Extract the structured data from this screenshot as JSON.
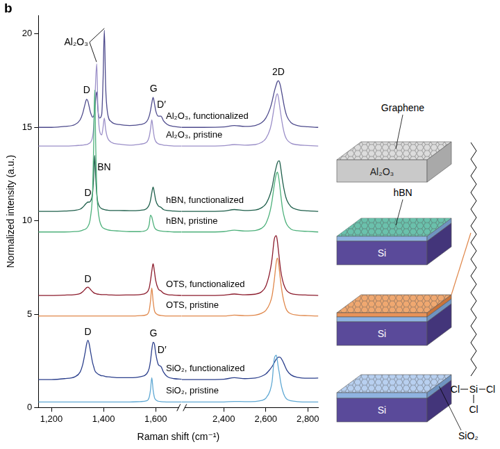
{
  "panel_letter": "b",
  "chart_data": {
    "type": "line",
    "x_label": "Raman shift (cm⁻¹)",
    "y_label": "Normalized intensity (a.u.)",
    "grid": false,
    "ylim": [
      0,
      21
    ],
    "yticks": [
      0,
      5,
      10,
      15,
      20
    ],
    "segments": [
      {
        "x": [
          1150,
          1200,
          1250,
          1290,
          1310,
          1320,
          1330,
          1335,
          1340,
          1345,
          1350,
          1358,
          1362,
          1366,
          1370,
          1374,
          1378,
          1385,
          1393,
          1398,
          1403,
          1408,
          1415,
          1430,
          1460,
          1500,
          1540,
          1565,
          1575,
          1580,
          1585,
          1590,
          1595,
          1600,
          1610,
          1620,
          1630,
          1645,
          1670,
          1700
        ],
        "xlim": [
          1150,
          1700
        ],
        "xticks": [
          {
            "value": 1200,
            "label": "1,200"
          },
          {
            "value": 1400,
            "label": "1,400"
          },
          {
            "value": 1600,
            "label": "1,600"
          }
        ]
      },
      {
        "x": [
          2200,
          2300,
          2400,
          2450,
          2500,
          2550,
          2580,
          2600,
          2620,
          2630,
          2640,
          2650,
          2655,
          2660,
          2665,
          2670,
          2680,
          2690,
          2700,
          2720,
          2750,
          2800,
          2850
        ],
        "xlim": [
          2200,
          2850
        ],
        "xticks": [
          {
            "value": 2400,
            "label": "2,400"
          },
          {
            "value": 2600,
            "label": "2,600"
          },
          {
            "value": 2800,
            "label": "2,800"
          }
        ]
      }
    ],
    "series": [
      {
        "name": "SiO₂, pristine",
        "color": "#5fa8d3",
        "values": [
          [
            0.3,
            0.3,
            0.3,
            0.3,
            0.3,
            0.3,
            0.3,
            0.3,
            0.3,
            0.3,
            0.3,
            0.3,
            0.3,
            0.3,
            0.3,
            0.3,
            0.3,
            0.3,
            0.3,
            0.3,
            0.3,
            0.3,
            0.3,
            0.3,
            0.3,
            0.3,
            0.32,
            0.36,
            0.55,
            0.95,
            1.6,
            0.95,
            0.55,
            0.42,
            0.34,
            0.32,
            0.31,
            0.3,
            0.3,
            0.3
          ],
          [
            0.3,
            0.3,
            0.3,
            0.33,
            0.32,
            0.33,
            0.38,
            0.5,
            0.9,
            1.4,
            2.6,
            2.8,
            2.5,
            2.1,
            1.8,
            1.4,
            0.9,
            0.6,
            0.45,
            0.36,
            0.32,
            0.3,
            0.3
          ]
        ]
      },
      {
        "name": "SiO₂, functionalized",
        "color": "#2b3f8c",
        "values": [
          [
            1.5,
            1.5,
            1.55,
            1.65,
            1.9,
            2.3,
            3.0,
            3.4,
            3.6,
            3.4,
            3.0,
            2.4,
            2.2,
            2.0,
            1.9,
            1.85,
            1.8,
            1.75,
            1.7,
            1.7,
            1.68,
            1.66,
            1.65,
            1.63,
            1.6,
            1.6,
            1.65,
            1.8,
            2.1,
            2.5,
            3.1,
            3.5,
            3.4,
            2.9,
            2.3,
            2.2,
            1.9,
            1.65,
            1.55,
            1.52
          ],
          [
            1.5,
            1.5,
            1.52,
            1.6,
            1.55,
            1.58,
            1.68,
            1.8,
            2.05,
            2.2,
            2.4,
            2.6,
            2.65,
            2.7,
            2.7,
            2.68,
            2.5,
            2.25,
            2.0,
            1.75,
            1.62,
            1.57,
            1.58
          ]
        ]
      },
      {
        "name": "OTS, pristine",
        "color": "#e0874a",
        "values": [
          [
            4.9,
            4.9,
            4.9,
            4.9,
            4.9,
            4.9,
            4.9,
            4.9,
            4.9,
            4.9,
            4.9,
            4.9,
            4.9,
            4.9,
            4.9,
            4.9,
            4.9,
            4.9,
            4.9,
            4.9,
            4.9,
            4.9,
            4.9,
            4.9,
            4.9,
            4.9,
            4.92,
            4.97,
            5.2,
            5.7,
            6.4,
            5.7,
            5.2,
            5.05,
            4.96,
            4.93,
            4.91,
            4.9,
            4.9,
            4.9
          ],
          [
            4.9,
            4.9,
            4.9,
            4.95,
            4.92,
            4.95,
            5.05,
            5.2,
            5.6,
            6.0,
            6.8,
            7.8,
            8.0,
            7.8,
            7.3,
            6.8,
            6.0,
            5.5,
            5.2,
            5.02,
            4.95,
            4.92,
            4.9
          ]
        ]
      },
      {
        "name": "OTS, functionalized",
        "color": "#8b1a2b",
        "values": [
          [
            6.0,
            6.0,
            6.02,
            6.05,
            6.1,
            6.2,
            6.35,
            6.42,
            6.45,
            6.4,
            6.32,
            6.2,
            6.15,
            6.12,
            6.1,
            6.08,
            6.07,
            6.06,
            6.05,
            6.05,
            6.05,
            6.05,
            6.04,
            6.03,
            6.02,
            6.03,
            6.05,
            6.15,
            6.4,
            6.8,
            7.3,
            7.7,
            7.3,
            6.8,
            6.35,
            6.25,
            6.12,
            6.05,
            6.02,
            6.0
          ],
          [
            6.0,
            6.0,
            6.02,
            6.08,
            6.04,
            6.07,
            6.2,
            6.5,
            7.3,
            8.0,
            9.0,
            9.2,
            8.9,
            8.4,
            7.9,
            7.4,
            6.8,
            6.45,
            6.25,
            6.1,
            6.05,
            6.02,
            6.0
          ]
        ]
      },
      {
        "name": "hBN, pristine",
        "color": "#4cb07a",
        "values": [
          [
            9.4,
            9.4,
            9.4,
            9.42,
            9.45,
            9.5,
            9.55,
            9.6,
            9.7,
            9.85,
            10.2,
            11.6,
            14.0,
            17.0,
            14.0,
            11.6,
            10.7,
            10.0,
            9.7,
            9.62,
            9.58,
            9.55,
            9.52,
            9.48,
            9.45,
            9.42,
            9.42,
            9.5,
            9.8,
            10.3,
            10.2,
            9.9,
            9.65,
            9.55,
            9.48,
            9.45,
            9.43,
            9.42,
            9.4,
            9.4
          ],
          [
            9.4,
            9.4,
            9.42,
            9.5,
            9.45,
            9.48,
            9.6,
            9.85,
            10.5,
            11.1,
            11.9,
            12.5,
            12.6,
            12.4,
            12.0,
            11.5,
            10.6,
            10.1,
            9.8,
            9.55,
            9.47,
            9.43,
            9.4
          ]
        ]
      },
      {
        "name": "hBN, functionalized",
        "color": "#1d5e4a",
        "values": [
          [
            10.5,
            10.5,
            10.52,
            10.56,
            10.62,
            10.72,
            10.88,
            10.95,
            11.0,
            11.0,
            11.05,
            11.5,
            12.3,
            13.5,
            12.3,
            11.4,
            11.0,
            10.75,
            10.65,
            10.62,
            10.6,
            10.58,
            10.57,
            10.55,
            10.55,
            10.54,
            10.56,
            10.65,
            10.85,
            11.1,
            11.5,
            11.8,
            11.5,
            11.1,
            10.8,
            10.72,
            10.6,
            10.55,
            10.52,
            10.5
          ],
          [
            10.5,
            10.5,
            10.52,
            10.6,
            10.55,
            10.58,
            10.7,
            10.9,
            11.4,
            11.8,
            12.4,
            12.9,
            13.1,
            13.2,
            13.2,
            12.9,
            12.1,
            11.5,
            11.1,
            10.75,
            10.6,
            10.53,
            10.5
          ]
        ]
      },
      {
        "name": "Al₂O₃, pristine",
        "color": "#9b8fc8",
        "values": [
          [
            14.0,
            14.0,
            14.0,
            14.02,
            14.04,
            14.05,
            14.07,
            14.08,
            14.1,
            14.15,
            14.2,
            14.5,
            15.0,
            16.2,
            17.6,
            18.4,
            16.2,
            14.8,
            14.6,
            15.0,
            15.5,
            14.9,
            14.45,
            14.2,
            14.1,
            14.05,
            14.1,
            14.2,
            14.5,
            14.9,
            15.4,
            14.9,
            14.45,
            14.25,
            14.12,
            14.08,
            14.05,
            14.03,
            14.0,
            14.0
          ],
          [
            14.0,
            14.0,
            14.02,
            14.08,
            14.05,
            14.08,
            14.2,
            14.4,
            14.9,
            15.4,
            16.1,
            16.7,
            16.8,
            16.6,
            16.2,
            15.8,
            15.1,
            14.6,
            14.35,
            14.15,
            14.07,
            14.03,
            14.0
          ]
        ]
      },
      {
        "name": "Al₂O₃, functionalized",
        "color": "#4d4a8c",
        "values": [
          [
            15.0,
            15.0,
            15.05,
            15.15,
            15.4,
            15.75,
            16.3,
            16.5,
            16.4,
            16.1,
            15.8,
            15.55,
            15.6,
            15.9,
            16.6,
            16.9,
            16.0,
            15.5,
            15.7,
            17.5,
            20.2,
            17.2,
            15.8,
            15.3,
            15.15,
            15.1,
            15.15,
            15.3,
            15.6,
            15.9,
            16.3,
            16.6,
            16.3,
            15.9,
            15.6,
            15.6,
            15.35,
            15.15,
            15.05,
            15.0
          ],
          [
            15.0,
            15.0,
            15.02,
            15.1,
            15.05,
            15.1,
            15.25,
            15.5,
            16.0,
            16.4,
            16.9,
            17.3,
            17.45,
            17.5,
            17.4,
            17.2,
            16.6,
            16.0,
            15.6,
            15.25,
            15.1,
            15.03,
            15.0
          ]
        ]
      }
    ],
    "annotations": [
      {
        "text": "Al₂O₃",
        "x": 1295,
        "y": 19.3,
        "points_to": [
          [
            1373,
            18.5
          ],
          [
            1403,
            20.3
          ]
        ]
      },
      {
        "text": "D",
        "x": 1335,
        "y": 16.7
      },
      {
        "text": "G",
        "x": 1592,
        "y": 16.8
      },
      {
        "text": "D′",
        "x": 1622,
        "y": 15.95
      },
      {
        "text": "2D",
        "x": 2660,
        "y": 17.7
      },
      {
        "text": "D",
        "x": 1340,
        "y": 11.2
      },
      {
        "text": "BN",
        "x": 1402,
        "y": 12.6
      },
      {
        "text": "D",
        "x": 1340,
        "y": 6.6
      },
      {
        "text": "D",
        "x": 1340,
        "y": 3.75
      },
      {
        "text": "G",
        "x": 1591,
        "y": 3.7
      },
      {
        "text": "D′",
        "x": 1624,
        "y": 2.8
      }
    ]
  },
  "diagram": {
    "graphene_label": "Graphene",
    "stacks": [
      {
        "substrate": "Al₂O₃"
      },
      {
        "layer": "hBN",
        "substrate": "Si"
      },
      {
        "substrate": "Si"
      },
      {
        "substrate": "Si",
        "oxide": "SiO₂"
      }
    ],
    "molecule": [
      "Cl",
      "Si",
      "Cl",
      "Cl"
    ]
  }
}
